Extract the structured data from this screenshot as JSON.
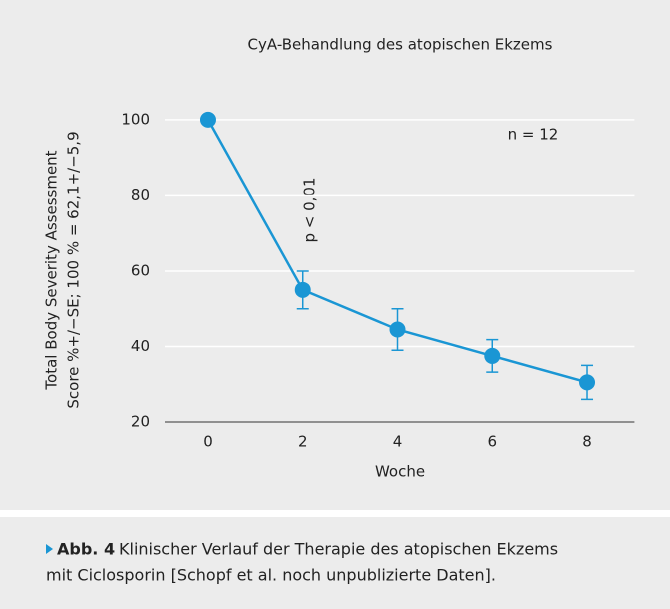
{
  "chart_data": {
    "type": "line",
    "title": "CyA-Behandlung des atopischen Ekzems",
    "xlabel": "Woche",
    "ylabel": [
      "Total Body Severity Assessment",
      "Score %+/−SE; 100 % = 62,1+/−5,9"
    ],
    "x": [
      0,
      2,
      4,
      6,
      8
    ],
    "series": [
      {
        "color": "#1a96d4",
        "values": [
          100,
          55,
          44.5,
          37.5,
          30.5
        ],
        "errors": [
          null,
          5,
          5.5,
          4.3,
          4.5
        ]
      }
    ],
    "xlim": [
      -1,
      9
    ],
    "xticks": [
      0,
      2,
      4,
      6,
      8
    ],
    "ylim": [
      20,
      105
    ],
    "yticks": [
      20,
      40,
      60,
      80,
      100
    ],
    "grid": true,
    "annotations": [
      "n = 12",
      "p < 0,01"
    ]
  },
  "caption": {
    "label": "Abb. 4",
    "lines": [
      "Klinischer Verlauf der Therapie des atopischen Ekzems",
      "mit Ciclosporin [Schopf et al. noch unpublizierte Daten]."
    ]
  }
}
